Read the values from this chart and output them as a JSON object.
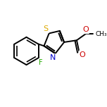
{
  "background_color": "#ffffff",
  "atom_colors": {
    "C": "#000000",
    "N": "#0000cd",
    "O": "#cc0000",
    "S": "#ddaa00",
    "F": "#22aa00",
    "H": "#000000"
  },
  "bond_color": "#000000",
  "bond_width": 1.4,
  "fig_size": [
    1.52,
    1.52
  ],
  "dpi": 100
}
